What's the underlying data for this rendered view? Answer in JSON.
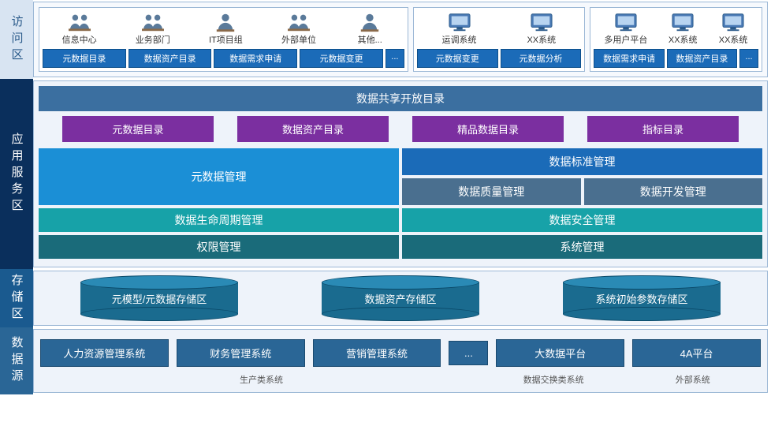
{
  "colors": {
    "side_access": "#d8e4f2",
    "side_access_text": "#2a5a8a",
    "side_service": "#0a2f5c",
    "side_storage": "#1a5a8f",
    "side_source": "#2a6696",
    "panel_border": "#9cb8d6",
    "panel_bg": "#eef3fa",
    "btn_blue": "#1b6bb8",
    "svc_header": "#3b6fa0",
    "svc_tab": "#7b2fa0",
    "svc_meta": "#1b8fd6",
    "svc_std": "#1b6bb8",
    "svc_qual": "#4a6f8f",
    "svc_dev": "#4a6f8f",
    "svc_life": "#17a2a8",
    "svc_sec": "#17a2a8",
    "svc_perm": "#1a6b7a",
    "svc_sys": "#1a6b7a",
    "cyl": "#1a6b8f",
    "cyl_top": "#2a8ab5",
    "src_box": "#2a6696"
  },
  "access": {
    "label": "访问区",
    "groups": [
      {
        "actors": [
          {
            "name": "信息中心",
            "icon": "people"
          },
          {
            "name": "业务部门",
            "icon": "people"
          },
          {
            "name": "IT项目组",
            "icon": "person"
          },
          {
            "name": "外部单位",
            "icon": "people"
          },
          {
            "name": "其他...",
            "icon": "person"
          }
        ],
        "buttons": [
          "元数据目录",
          "数据资产目录",
          "数据需求申请",
          "元数据变更",
          "..."
        ]
      },
      {
        "actors": [
          {
            "name": "运调系统",
            "icon": "monitor"
          },
          {
            "name": "XX系统",
            "icon": "monitor"
          }
        ],
        "buttons": [
          "元数据变更",
          "元数据分析"
        ]
      },
      {
        "actors": [
          {
            "name": "多用户平台",
            "icon": "monitor"
          },
          {
            "name": "XX系统",
            "icon": "monitor"
          },
          {
            "name": "XX系统",
            "icon": "monitor"
          }
        ],
        "buttons": [
          "数据需求申请",
          "数据资产目录",
          "..."
        ]
      }
    ]
  },
  "service": {
    "label": "应用服务区",
    "header": "数据共享开放目录",
    "tabs": [
      "元数据目录",
      "数据资产目录",
      "精品数据目录",
      "指标目录"
    ],
    "meta": "元数据管理",
    "std": "数据标准管理",
    "qual": "数据质量管理",
    "dev": "数据开发管理",
    "life": "数据生命周期管理",
    "sec": "数据安全管理",
    "perm": "权限管理",
    "sys": "系统管理"
  },
  "storage": {
    "label": "存储区",
    "cylinders": [
      "元模型/元数据存储区",
      "数据资产存储区",
      "系统初始参数存储区"
    ],
    "cyl_w": 200,
    "cyl_h": 40
  },
  "source": {
    "label": "数据源",
    "boxes": [
      "人力资源管理系统",
      "财务管理系统",
      "营销管理系统",
      "...",
      "大数据平台",
      "4A平台"
    ],
    "cats": [
      {
        "label": "生产类系统",
        "span": [
          0,
          3
        ]
      },
      {
        "label": "数据交换类系统",
        "span": [
          4,
          5
        ]
      },
      {
        "label": "外部系统",
        "span": [
          5,
          6
        ]
      }
    ]
  }
}
